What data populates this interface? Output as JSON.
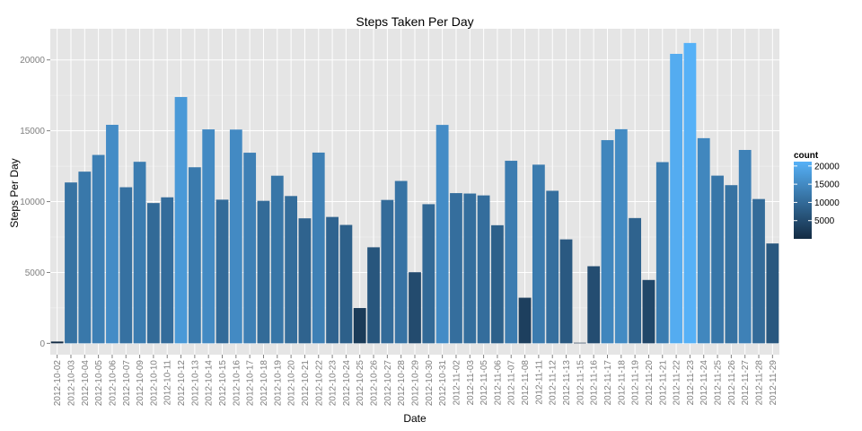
{
  "chart_data": {
    "type": "bar",
    "title": "Steps Taken Per Day",
    "xlabel": "Date",
    "ylabel": "Steps Per Day",
    "ylim": [
      -800,
      22200
    ],
    "yticks": [
      0,
      5000,
      10000,
      15000,
      20000
    ],
    "ytick_labels": [
      "0",
      "5000",
      "10000",
      "15000",
      "20000"
    ],
    "grid": true,
    "legend": {
      "title": "count",
      "position": "right",
      "ticks": [
        5000,
        10000,
        15000,
        20000
      ],
      "tick_labels": [
        "5000",
        "10000",
        "15000",
        "20000"
      ],
      "color_low": "#132B43",
      "color_high": "#56B1F7",
      "range": [
        0,
        21194
      ]
    },
    "categories": [
      "2012-10-02",
      "2012-10-03",
      "2012-10-04",
      "2012-10-05",
      "2012-10-06",
      "2012-10-07",
      "2012-10-09",
      "2012-10-10",
      "2012-10-11",
      "2012-10-12",
      "2012-10-13",
      "2012-10-14",
      "2012-10-15",
      "2012-10-16",
      "2012-10-17",
      "2012-10-18",
      "2012-10-19",
      "2012-10-20",
      "2012-10-21",
      "2012-10-22",
      "2012-10-23",
      "2012-10-24",
      "2012-10-25",
      "2012-10-26",
      "2012-10-27",
      "2012-10-28",
      "2012-10-29",
      "2012-10-30",
      "2012-10-31",
      "2012-11-02",
      "2012-11-03",
      "2012-11-05",
      "2012-11-06",
      "2012-11-07",
      "2012-11-08",
      "2012-11-11",
      "2012-11-12",
      "2012-11-13",
      "2012-11-15",
      "2012-11-16",
      "2012-11-17",
      "2012-11-18",
      "2012-11-19",
      "2012-11-20",
      "2012-11-21",
      "2012-11-22",
      "2012-11-23",
      "2012-11-24",
      "2012-11-25",
      "2012-11-26",
      "2012-11-27",
      "2012-11-28",
      "2012-11-29"
    ],
    "values": [
      126,
      11352,
      12116,
      13294,
      15420,
      11015,
      12811,
      9900,
      10304,
      17382,
      12426,
      15098,
      10139,
      15084,
      13452,
      10056,
      11829,
      10395,
      8821,
      13460,
      8918,
      8355,
      2492,
      6778,
      10119,
      11458,
      5018,
      9819,
      15414,
      10600,
      10571,
      10439,
      8334,
      12883,
      3219,
      12608,
      10765,
      7336,
      41,
      5441,
      14339,
      15110,
      8841,
      4472,
      12787,
      20427,
      21194,
      14478,
      11834,
      11162,
      13646,
      10183,
      7047
    ]
  }
}
